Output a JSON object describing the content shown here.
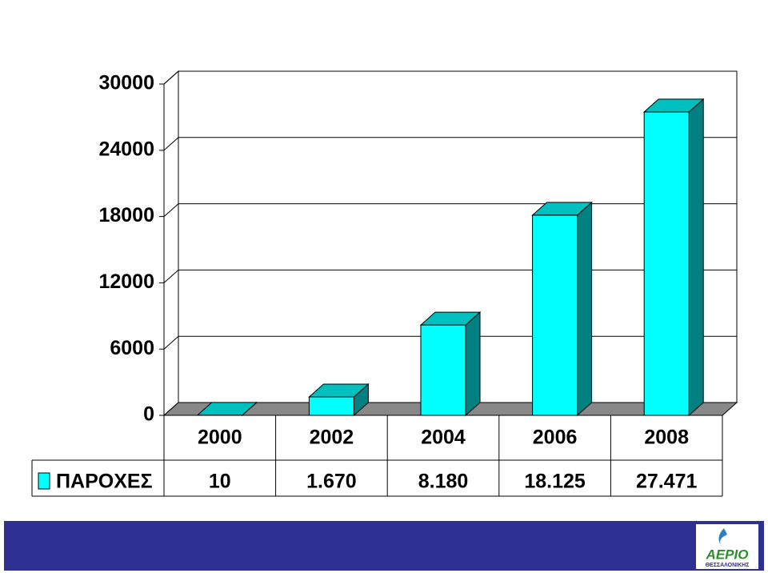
{
  "chart_data": {
    "type": "bar3d",
    "categories": [
      "2000",
      "2002",
      "2004",
      "2006",
      "2008"
    ],
    "series": [
      {
        "name": "ΠΑΡΟΧΕΣ",
        "color": "#00ffff",
        "values": [
          10,
          1670,
          8180,
          18125,
          27471
        ],
        "value_labels": [
          "10",
          "1.670",
          "8.180",
          "18.125",
          "27.471"
        ]
      }
    ],
    "ylim": [
      0,
      30000
    ],
    "yticks": [
      0,
      6000,
      12000,
      18000,
      24000,
      30000
    ],
    "grid": true
  },
  "logo": {
    "name": "ΑΕΡΙΟ",
    "subtitle": "ΘΕΣΣΑΛΟΝΙΚΗΣ"
  }
}
